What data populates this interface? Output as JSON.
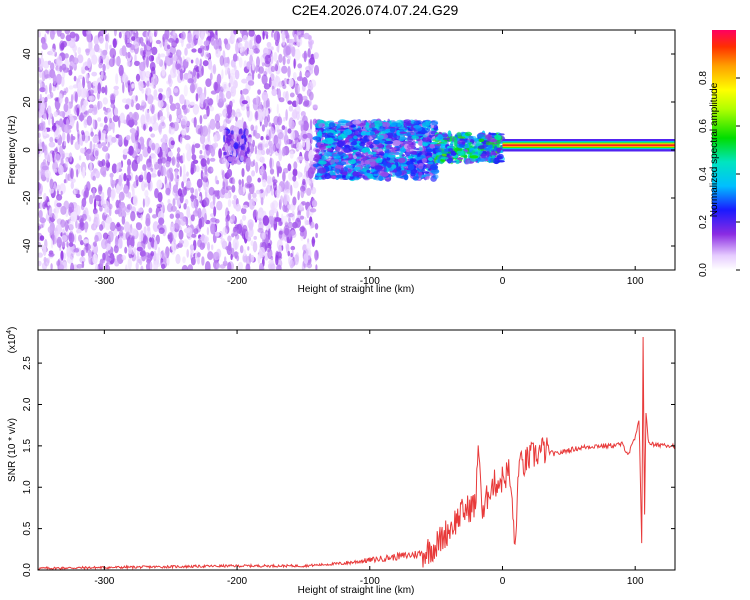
{
  "title": "C2E4.2026.074.07.24.G29",
  "colors": {
    "snr_line": "#e83a3a",
    "spectrogram_noise": "#7b1fe0",
    "spectrogram_strong": "#ff0000",
    "frame": "#000000"
  },
  "chart_data": [
    {
      "type": "heatmap",
      "title": "C2E4.2026.074.07.24.G29",
      "xlabel": "Height of straight line (km)",
      "ylabel": "Frequency (Hz)",
      "xlim": [
        -350,
        130
      ],
      "ylim": [
        -50,
        50
      ],
      "x_ticks": [
        -300,
        -200,
        -100,
        0,
        100
      ],
      "y_ticks": [
        -40,
        -20,
        0,
        20,
        40
      ],
      "colorbar": {
        "label": "Normalized spectral amplitude",
        "range": [
          0,
          1
        ],
        "ticks": [
          "0.0",
          "0.2",
          "0.4",
          "0.6",
          "0.8"
        ],
        "colormap": "rainbow"
      },
      "regions": [
        {
          "x_range": [
            -350,
            -140
          ],
          "y_range": [
            -50,
            50
          ],
          "amplitude": 0.12,
          "pattern": "scattered noise"
        },
        {
          "x_range": [
            -210,
            -190
          ],
          "y_range": [
            -5,
            8
          ],
          "amplitude": 0.2,
          "pattern": "cluster"
        },
        {
          "x_range": [
            -140,
            -50
          ],
          "y_range": [
            -12,
            12
          ],
          "amplitude": 0.35,
          "pattern": "band"
        },
        {
          "x_range": [
            -50,
            0
          ],
          "y_range": [
            -5,
            7
          ],
          "amplitude": 0.5,
          "pattern": "band"
        },
        {
          "x_range": [
            0,
            130
          ],
          "y_range": [
            0,
            4
          ],
          "amplitude": 0.95,
          "pattern": "narrow tone"
        }
      ]
    },
    {
      "type": "line",
      "xlabel": "Height of straight line (km)",
      "ylabel": "SNR (10 * v/v)",
      "y_scale_label": "(x10",
      "y_scale_exponent": "4",
      "y_scale_suffix": ")",
      "xlim": [
        -350,
        130
      ],
      "ylim": [
        0,
        2.9
      ],
      "x_ticks": [
        -300,
        -200,
        -100,
        0,
        100
      ],
      "y_ticks": [
        "0.0",
        "0.5",
        "1.0",
        "1.5",
        "2.0",
        "2.5"
      ],
      "series": [
        {
          "x": [
            -350,
            -300,
            -250,
            -200,
            -150,
            -120,
            -100,
            -80,
            -60,
            -50,
            -40,
            -30,
            -20,
            -18,
            -15,
            -10,
            0,
            5,
            10,
            12,
            15,
            20,
            30,
            40,
            50,
            60,
            70,
            80,
            90,
            95,
            100,
            103,
            105,
            106,
            107,
            108,
            110,
            115,
            120,
            130
          ],
          "y": [
            0.02,
            0.03,
            0.04,
            0.05,
            0.05,
            0.08,
            0.12,
            0.16,
            0.2,
            0.3,
            0.5,
            0.7,
            0.8,
            1.6,
            0.6,
            1.0,
            1.1,
            1.2,
            0.25,
            1.3,
            1.25,
            1.35,
            1.45,
            1.4,
            1.45,
            1.48,
            1.5,
            1.5,
            1.52,
            1.4,
            1.6,
            1.8,
            0.3,
            2.8,
            0.6,
            1.9,
            1.55,
            1.5,
            1.52,
            1.5
          ]
        }
      ]
    }
  ]
}
